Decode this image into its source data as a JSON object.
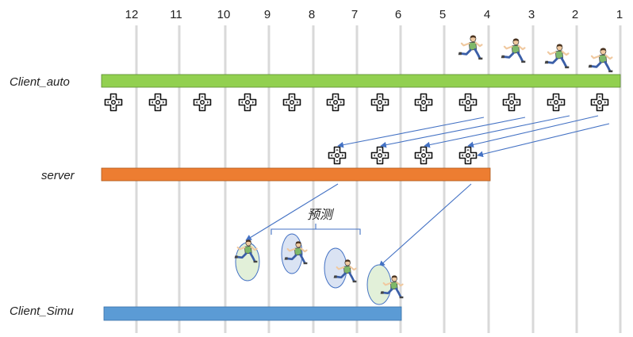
{
  "ticks": [
    "12",
    "11",
    "10",
    "9",
    "8",
    "7",
    "6",
    "5",
    "4",
    "3",
    "2",
    "1"
  ],
  "rows": {
    "client_auto": {
      "label": "Client_auto",
      "color": "#92d050"
    },
    "server": {
      "label": "server",
      "color": "#ed7d31"
    },
    "client_simu": {
      "label": "Client_Simu",
      "color": "#5b9bd5"
    }
  },
  "prediction_label": "预测",
  "icons": {
    "runner": "running-person-icon",
    "input": "gamepad-dpad-icon"
  },
  "colors": {
    "arrow": "#4472c4",
    "gridline": "#d9d9d9",
    "ellipse_green": "#e2f0d9",
    "ellipse_blue": "#dae3f3"
  }
}
